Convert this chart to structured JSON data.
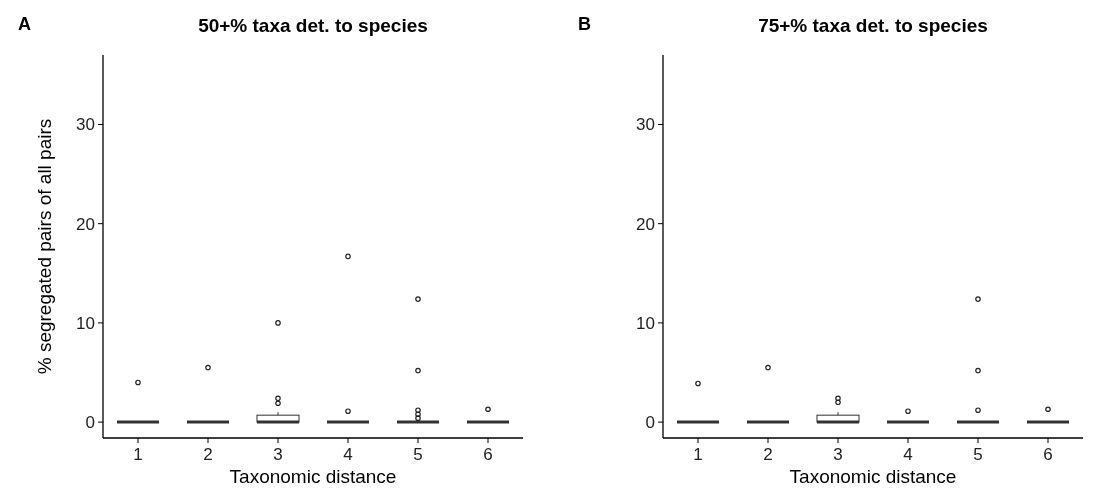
{
  "chart_data": [
    {
      "type": "box",
      "title": "50+% taxa det. to species",
      "xlabel": "Taxonomic distance",
      "ylabel": "% segregated pairs of all pairs",
      "annotations": [
        "A"
      ],
      "categories": [
        "1",
        "2",
        "3",
        "4",
        "5",
        "6"
      ],
      "ylim": [
        -1.6,
        37
      ],
      "yticks": [
        0,
        10,
        20,
        30
      ],
      "grid": false,
      "boxes": [
        {
          "low": 0,
          "q1": 0,
          "median": 0,
          "q3": 0,
          "high": 0,
          "outliers": [
            4.0
          ]
        },
        {
          "low": 0,
          "q1": 0,
          "median": 0,
          "q3": 0,
          "high": 0,
          "outliers": [
            5.5
          ]
        },
        {
          "low": 0,
          "q1": 0,
          "median": 0,
          "q3": 0.7,
          "high": 1.0,
          "outliers": [
            10.0,
            2.4,
            1.9
          ]
        },
        {
          "low": 0,
          "q1": 0,
          "median": 0,
          "q3": 0,
          "high": 0,
          "outliers": [
            16.7,
            1.1
          ]
        },
        {
          "low": 0,
          "q1": 0,
          "median": 0,
          "q3": 0,
          "high": 0,
          "outliers": [
            12.4,
            5.2,
            1.2,
            0.8,
            0.4
          ]
        },
        {
          "low": 0,
          "q1": 0,
          "median": 0,
          "q3": 0,
          "high": 0,
          "outliers": [
            1.3
          ]
        }
      ]
    },
    {
      "type": "box",
      "title": "75+% taxa det. to species",
      "xlabel": "Taxonomic distance",
      "annotations": [
        "B"
      ],
      "categories": [
        "1",
        "2",
        "3",
        "4",
        "5",
        "6"
      ],
      "ylim": [
        -1.6,
        37
      ],
      "yticks": [
        0,
        10,
        20,
        30
      ],
      "grid": false,
      "boxes": [
        {
          "low": 0,
          "q1": 0,
          "median": 0,
          "q3": 0,
          "high": 0,
          "outliers": [
            3.9
          ]
        },
        {
          "low": 0,
          "q1": 0,
          "median": 0,
          "q3": 0,
          "high": 0,
          "outliers": [
            5.5
          ]
        },
        {
          "low": 0,
          "q1": 0,
          "median": 0,
          "q3": 0.7,
          "high": 1.0,
          "outliers": [
            2.4,
            2.0
          ]
        },
        {
          "low": 0,
          "q1": 0,
          "median": 0,
          "q3": 0,
          "high": 0,
          "outliers": [
            1.1
          ]
        },
        {
          "low": 0,
          "q1": 0,
          "median": 0,
          "q3": 0,
          "high": 0,
          "outliers": [
            12.4,
            5.2,
            1.2
          ]
        },
        {
          "low": 0,
          "q1": 0,
          "median": 0,
          "q3": 0,
          "high": 0,
          "outliers": [
            1.3
          ]
        }
      ]
    }
  ]
}
